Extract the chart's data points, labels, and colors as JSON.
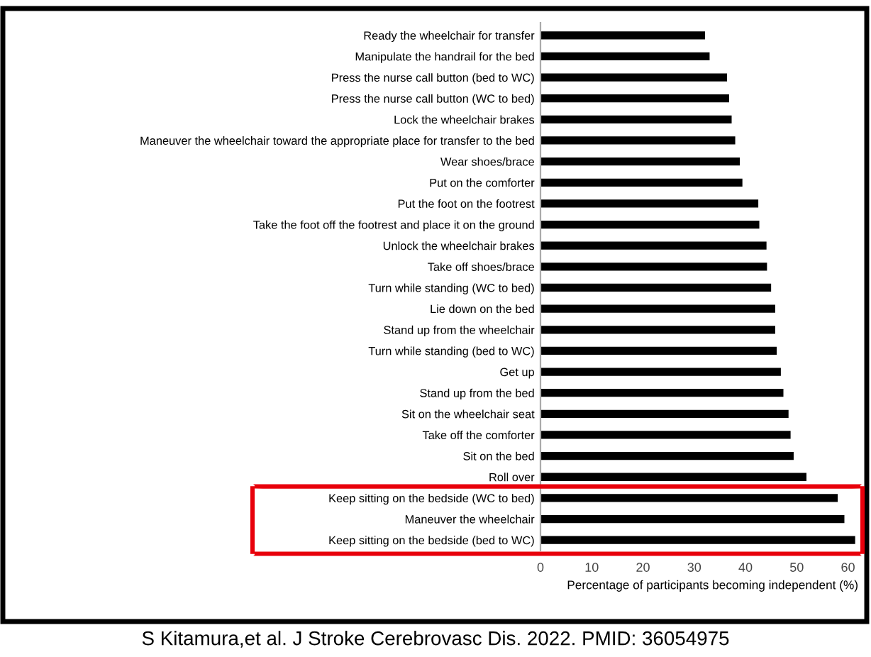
{
  "chart_data": {
    "type": "bar",
    "orientation": "horizontal",
    "categories": [
      "Ready the wheelchair for transfer",
      "Manipulate the handrail for the bed",
      "Press the nurse call button (bed to WC)",
      "Press the nurse call button (WC to bed)",
      "Lock the wheelchair brakes",
      "Maneuver the wheelchair toward the appropriate place for transfer to the bed",
      "Wear shoes/brace",
      "Put on the comforter",
      "Put the foot on the footrest",
      "Take the foot off the footrest and place it on the ground",
      "Unlock the wheelchair brakes",
      "Take off shoes/brace",
      "Turn while standing (WC to bed)",
      "Lie down on the bed",
      "Stand up from the wheelchair",
      "Turn while standing (bed to WC)",
      "Get up",
      "Stand up from the bed",
      "Sit on the wheelchair seat",
      "Take off the comforter",
      "Sit on the bed",
      "Roll over",
      "Keep sitting on the bedside (WC to bed)",
      "Maneuver the wheelchair",
      "Keep sitting on the bedside (bed to WC)"
    ],
    "values": [
      32.1,
      33.0,
      36.4,
      36.8,
      37.3,
      38.0,
      38.9,
      39.4,
      42.5,
      42.7,
      44.1,
      44.2,
      45.0,
      45.8,
      45.8,
      46.1,
      46.9,
      47.4,
      48.4,
      48.8,
      49.4,
      51.9,
      58.0,
      59.3,
      61.4
    ],
    "color": "#000000",
    "xlim": [
      0,
      62
    ],
    "xticks": [
      0,
      10,
      20,
      30,
      40,
      50,
      60
    ],
    "xlabel": "Percentage of participants becoming independent (%)",
    "annotations": [
      "S Kitamura,et al. J Stroke Cerebrovasc Dis. 2022. PMID: 36054975"
    ],
    "grid": false,
    "legend": false
  }
}
